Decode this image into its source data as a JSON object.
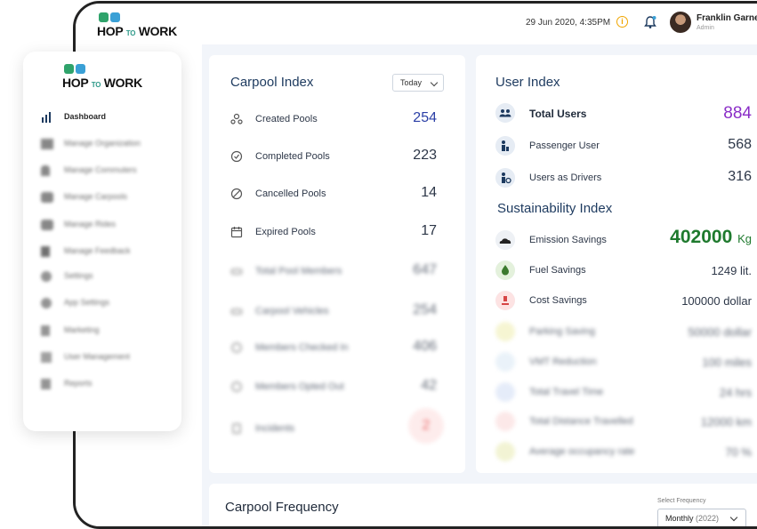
{
  "brand": {
    "part1": "HOP",
    "part2": "TO",
    "part3": "WORK"
  },
  "topbar": {
    "datetime": "29 Jun 2020,  4:35PM",
    "user_name": "Franklin Garner",
    "user_role": "Admin"
  },
  "sidebar": {
    "items": [
      {
        "label": "Dashboard",
        "icon": "bar-chart-icon"
      },
      {
        "label": "Manage Organization",
        "icon": "building-icon"
      },
      {
        "label": "Manage Commuters",
        "icon": "person-icon"
      },
      {
        "label": "Manage Carpools",
        "icon": "car-icon"
      },
      {
        "label": "Manage Rides",
        "icon": "car-icon"
      },
      {
        "label": "Manage Feedback",
        "icon": "document-icon"
      },
      {
        "label": "Settings",
        "icon": "gear-icon"
      },
      {
        "label": "App Settings",
        "icon": "gear-icon"
      },
      {
        "label": "Marketing",
        "icon": "chart-icon"
      },
      {
        "label": "User Management",
        "icon": "users-icon"
      },
      {
        "label": "Reports",
        "icon": "report-icon"
      }
    ]
  },
  "carpool_index": {
    "title": "Carpool Index",
    "filter": "Today",
    "rows": [
      {
        "label": "Created Pools",
        "value": "254",
        "icon": "pool-icon",
        "color": "#2b3fa6"
      },
      {
        "label": "Completed  Pools",
        "value": "223",
        "icon": "check-circle-icon",
        "color": "#2d3748"
      },
      {
        "label": "Cancelled Pools",
        "value": "14",
        "icon": "ban-icon",
        "color": "#2d3748"
      },
      {
        "label": "Expired Pools",
        "value": "17",
        "icon": "calendar-icon",
        "color": "#2d3748"
      },
      {
        "label": "Total Pool Members",
        "value": "647",
        "icon": "car-icon",
        "color": "#2d3748"
      },
      {
        "label": "Carpool Vehicles",
        "value": "254",
        "icon": "car-icon",
        "color": "#2d3748"
      },
      {
        "label": "Members Checked In",
        "value": "406",
        "icon": "checkin-icon",
        "color": "#2d3748"
      },
      {
        "label": "Members Opted Out",
        "value": "42",
        "icon": "optout-icon",
        "color": "#2d3748"
      },
      {
        "label": "Incidents",
        "value": "2",
        "icon": "incident-icon",
        "color": "#e53e3e"
      }
    ]
  },
  "user_index": {
    "title": "User Index",
    "rows": [
      {
        "label": "Total Users",
        "value": "884",
        "icon": "users-icon",
        "color": "#8a2dc7"
      },
      {
        "label": "Passenger User",
        "value": "568",
        "icon": "passenger-icon",
        "color": "#2d3748"
      },
      {
        "label": "Users as Drivers",
        "value": "316",
        "icon": "driver-icon",
        "color": "#2d3748"
      }
    ]
  },
  "sustainability_index": {
    "title": "Sustainability Index",
    "rows": [
      {
        "label": "Emission Savings",
        "value": "402000",
        "unit": "Kg",
        "icon": "cloud-icon",
        "color": "#1f7a2e"
      },
      {
        "label": "Fuel Savings",
        "value": "1249 lit.",
        "unit": "",
        "icon": "fuel-drop-icon",
        "color": "#2d3748"
      },
      {
        "label": "Cost Savings",
        "value": "100000 dollar",
        "unit": "",
        "icon": "money-hand-icon",
        "color": "#2d3748"
      },
      {
        "label": "Parking Saving",
        "value": "50000 dollar",
        "unit": "",
        "icon": "parking-icon",
        "color": "#2d3748"
      },
      {
        "label": "VMT Reduction",
        "value": "100 miles",
        "unit": "",
        "icon": "road-icon",
        "color": "#2d3748"
      },
      {
        "label": "Total Travel Time",
        "value": "24 hrs",
        "unit": "",
        "icon": "hourglass-icon",
        "color": "#2d3748"
      },
      {
        "label": "Total Distance Travelled",
        "value": "12000 km",
        "unit": "",
        "icon": "location-pin-icon",
        "color": "#2d3748"
      },
      {
        "label": "Average occupancy rate",
        "value": "70 %",
        "unit": "",
        "icon": "occupancy-icon",
        "color": "#2d3748"
      }
    ]
  },
  "carpool_frequency": {
    "title": "Carpool Frequency",
    "select_label": "Select Frequency",
    "selected": "Monthly",
    "selected_year": "(2022)"
  },
  "colors": {
    "accent": "#1d3a5f",
    "purple": "#8a2dc7",
    "green": "#1f7a2e",
    "blue": "#2b3fa6",
    "red": "#e53e3e"
  }
}
